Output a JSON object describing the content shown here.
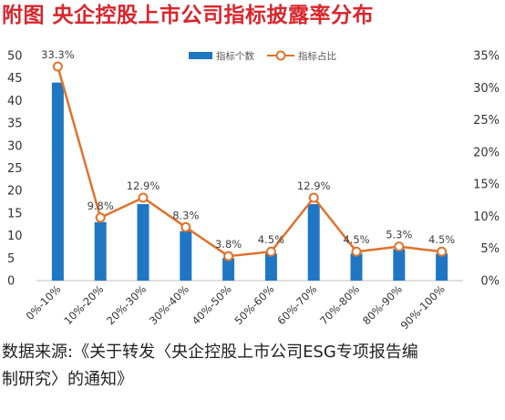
{
  "header": {
    "title": "附图  央企控股上市公司指标披露率分布"
  },
  "source": {
    "line1": "数据来源:《关于转发〈央企控股上市公司ESG专项报告编",
    "line2": "制研究〉的通知》"
  },
  "chart_data": {
    "type": "bar",
    "categories": [
      "0%-10%",
      "10%-20%",
      "20%-30%",
      "30%-40%",
      "40%-50%",
      "50%-60%",
      "60%-70%",
      "70%-80%",
      "80%-90%",
      "90%-100%"
    ],
    "series": [
      {
        "name": "指标个数",
        "kind": "bar",
        "axis": "left",
        "color": "#1f77c4",
        "values": [
          44,
          13,
          17,
          11,
          5,
          6,
          17,
          6,
          7,
          6
        ]
      },
      {
        "name": "指标占比",
        "kind": "line",
        "axis": "right",
        "color": "#e0722a",
        "values": [
          33.3,
          9.8,
          12.9,
          8.3,
          3.8,
          4.5,
          12.9,
          4.5,
          5.3,
          4.5
        ],
        "data_labels": [
          "33.3%",
          "9.8%",
          "12.9%",
          "8.3%",
          "3.8%",
          "4.5%",
          "12.9%",
          "4.5%",
          "5.3%",
          "4.5%"
        ]
      }
    ],
    "left_axis": {
      "ylim": [
        0,
        50
      ],
      "ticks": [
        0,
        5,
        10,
        15,
        20,
        25,
        30,
        35,
        40,
        45,
        50
      ],
      "tick_labels": [
        "0",
        "5",
        "10",
        "15",
        "20",
        "25",
        "30",
        "35",
        "40",
        "45",
        "50"
      ]
    },
    "right_axis": {
      "ylim": [
        0,
        35
      ],
      "ticks": [
        0,
        5,
        10,
        15,
        20,
        25,
        30,
        35
      ],
      "tick_labels": [
        "0%",
        "5%",
        "10%",
        "15%",
        "20%",
        "25%",
        "30%",
        "35%"
      ]
    },
    "grid": false,
    "legend_position": "top-center"
  }
}
